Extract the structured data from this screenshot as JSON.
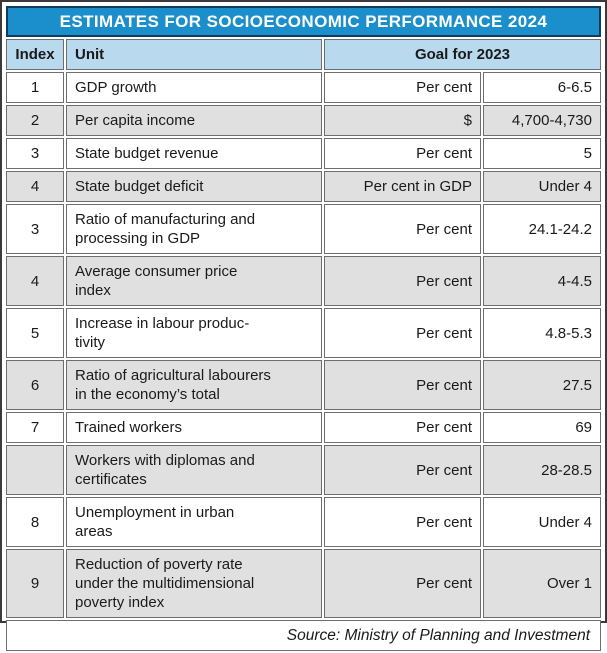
{
  "title": "ESTIMATES FOR SOCIOECONOMIC PERFORMANCE 2024",
  "colors": {
    "accent": "#1b8fcc",
    "title-border": "#123c5c",
    "header-bg": "#b9d9ee",
    "shade": "#e0e0e0"
  },
  "table": {
    "headers": {
      "index": "Index",
      "unit": "Unit",
      "goal": "Goal for 2023"
    },
    "rows": [
      {
        "index": "1",
        "name": "GDP growth",
        "unit": "Per cent",
        "value": "6-6.5"
      },
      {
        "index": "2",
        "name": "Per capita income",
        "unit": "$",
        "value": "4,700-4,730"
      },
      {
        "index": "3",
        "name": "State budget revenue",
        "unit": "Per cent",
        "value": "5"
      },
      {
        "index": "4",
        "name": "State budget deficit",
        "unit": "Per cent in GDP",
        "value": "Under 4"
      },
      {
        "index": "3",
        "name": "Ratio of manufacturing and\nprocessing in GDP",
        "unit": "Per cent",
        "value": "24.1-24.2"
      },
      {
        "index": "4",
        "name": "Average consumer price\nindex",
        "unit": "Per cent",
        "value": "4-4.5"
      },
      {
        "index": "5",
        "name": "Increase in labour produc-\ntivity",
        "unit": "Per cent",
        "value": "4.8-5.3"
      },
      {
        "index": "6",
        "name": "Ratio of agricultural labourers\nin the economy’s total",
        "unit": "Per cent",
        "value": "27.5"
      },
      {
        "index": "7",
        "name": "Trained workers",
        "unit": "Per cent",
        "value": "69"
      },
      {
        "index": "",
        "name": "Workers with diplomas and\ncertificates",
        "unit": "Per cent",
        "value": "28-28.5"
      },
      {
        "index": "8",
        "name": "Unemployment in urban\nareas",
        "unit": "Per cent",
        "value": "Under 4"
      },
      {
        "index": "9",
        "name": "Reduction of poverty rate\nunder the multidimensional\npoverty index",
        "unit": "Per cent",
        "value": "Over 1"
      }
    ]
  },
  "footer": {
    "source": "Source: Ministry of Planning and Investment"
  }
}
